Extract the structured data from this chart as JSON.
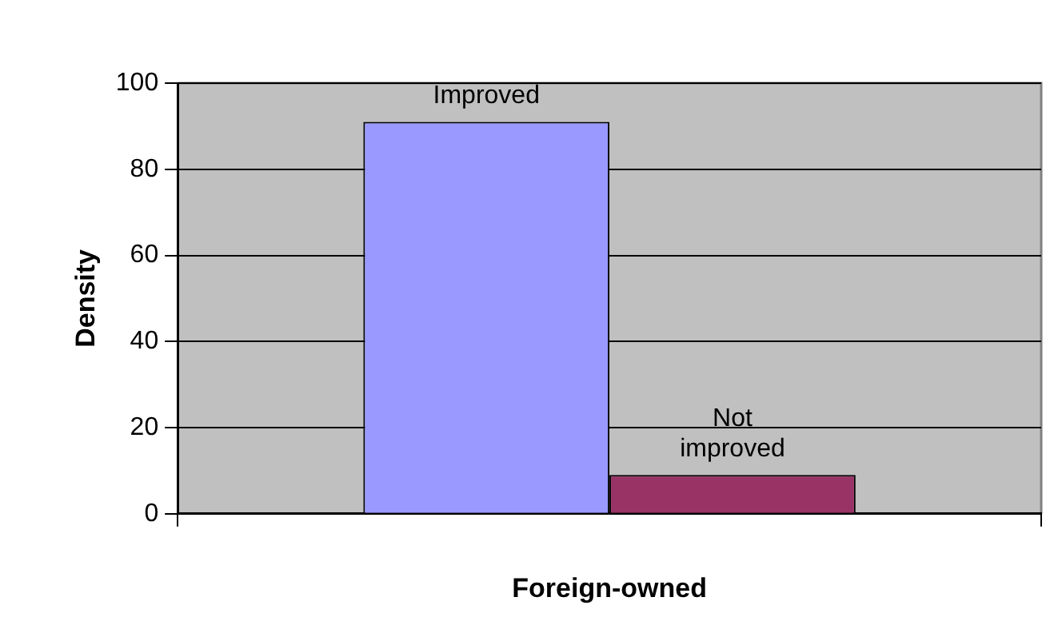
{
  "chart_data": {
    "type": "bar",
    "xlabel": "Foreign-owned",
    "ylabel": "Density",
    "categories": [
      null
    ],
    "series": [
      {
        "name": "Improved",
        "color": "#9999ff",
        "values": [
          91
        ]
      },
      {
        "name": "Not improved",
        "color": "#993366",
        "values": [
          9
        ]
      }
    ],
    "ylim": [
      0,
      100
    ],
    "yticks": [
      0,
      20,
      40,
      60,
      80,
      100
    ],
    "grid": "y",
    "legend": false
  }
}
